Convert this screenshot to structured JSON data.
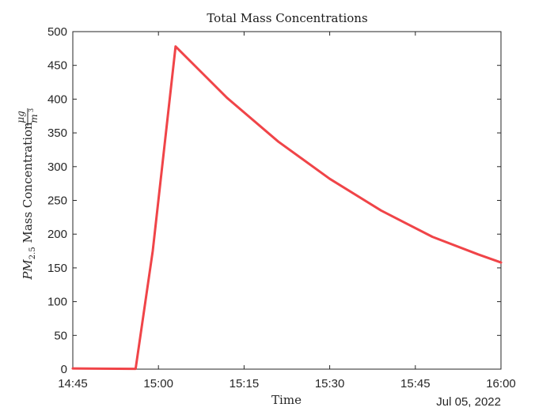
{
  "chart_data": {
    "type": "line",
    "title": "Total Mass Concentrations",
    "xlabel": "Time",
    "ylabel": {
      "prefix": "PM",
      "subscript": "2.5",
      "text": " Mass Concentration ",
      "unit_numerator": "μg",
      "unit_denominator": "m",
      "unit_denominator_exponent": "3"
    },
    "date_label": "Jul 05, 2022",
    "x_ticks": [
      "14:45",
      "15:00",
      "15:15",
      "15:30",
      "15:45",
      "16:00"
    ],
    "y_ticks": [
      0,
      50,
      100,
      150,
      200,
      250,
      300,
      350,
      400,
      450,
      500
    ],
    "xlim": [
      "14:45",
      "16:00"
    ],
    "ylim": [
      0,
      500
    ],
    "grid": false,
    "series": [
      {
        "color": "#f04448",
        "points": [
          [
            "14:45",
            1
          ],
          [
            "14:56",
            0.5
          ],
          [
            "14:59",
            175
          ],
          [
            "15:03",
            478
          ],
          [
            "15:12",
            402
          ],
          [
            "15:21",
            337
          ],
          [
            "15:30",
            282
          ],
          [
            "15:39",
            235
          ],
          [
            "15:48",
            196
          ],
          [
            "15:56",
            170
          ],
          [
            "16:00",
            158
          ]
        ]
      }
    ]
  }
}
